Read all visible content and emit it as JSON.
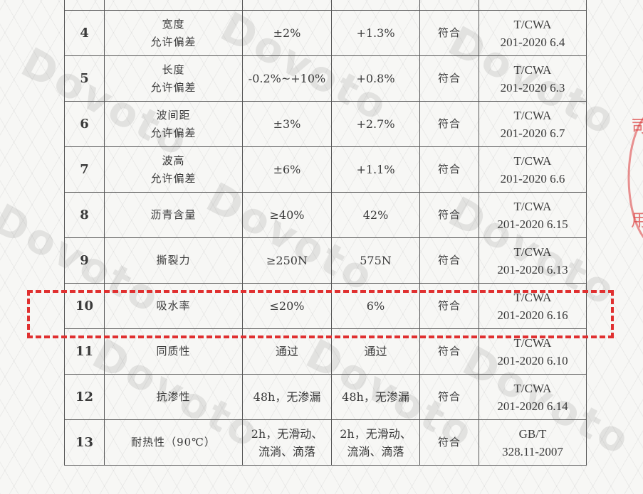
{
  "watermark": {
    "text": "Dovoto"
  },
  "table": {
    "rows": [
      {
        "no": "",
        "item": "",
        "requirement": "",
        "result": "",
        "conclusion": "",
        "standard": [
          "",
          ""
        ]
      },
      {
        "no": "4",
        "item": "宽度\n允许偏差",
        "requirement": "±2%",
        "result": "+1.3%",
        "conclusion": "符合",
        "standard": [
          "T/CWA",
          "201-2020 6.4"
        ]
      },
      {
        "no": "5",
        "item": "长度\n允许偏差",
        "requirement": "-0.2%~+10%",
        "result": "+0.8%",
        "conclusion": "符合",
        "standard": [
          "T/CWA",
          "201-2020 6.3"
        ]
      },
      {
        "no": "6",
        "item": "波间距\n允许偏差",
        "requirement": "±3%",
        "result": "+2.7%",
        "conclusion": "符合",
        "standard": [
          "T/CWA",
          "201-2020 6.7"
        ]
      },
      {
        "no": "7",
        "item": "波高\n允许偏差",
        "requirement": "±6%",
        "result": "+1.1%",
        "conclusion": "符合",
        "standard": [
          "T/CWA",
          "201-2020 6.6"
        ]
      },
      {
        "no": "8",
        "item": "沥青含量",
        "requirement": "≥40%",
        "result": "42%",
        "conclusion": "符合",
        "standard": [
          "T/CWA",
          "201-2020 6.15"
        ]
      },
      {
        "no": "9",
        "item": "撕裂力",
        "requirement": "≥250N",
        "result": "575N",
        "conclusion": "符合",
        "standard": [
          "T/CWA",
          "201-2020 6.13"
        ]
      },
      {
        "no": "10",
        "item": "吸水率",
        "requirement": "≤20%",
        "result": "6%",
        "conclusion": "符合",
        "standard": [
          "T/CWA",
          "201-2020 6.16"
        ]
      },
      {
        "no": "11",
        "item": "同质性",
        "requirement": "通过",
        "result": "通过",
        "conclusion": "符合",
        "standard": [
          "T/CWA",
          "201-2020 6.10"
        ]
      },
      {
        "no": "12",
        "item": "抗渗性",
        "requirement": "48h，无渗漏",
        "result": "48h，无渗漏",
        "conclusion": "符合",
        "standard": [
          "T/CWA",
          "201-2020 6.14"
        ]
      },
      {
        "no": "13",
        "item": "耐热性（90℃）",
        "requirement": "2h，无滑动、\n流淌、滴落",
        "result": "2h，无滑动、\n流淌、滴落",
        "conclusion": "符合",
        "standard": [
          "GB/T",
          "328.11-2007"
        ]
      }
    ],
    "highlighted_row": "10",
    "highlight_color": "#e03030"
  }
}
